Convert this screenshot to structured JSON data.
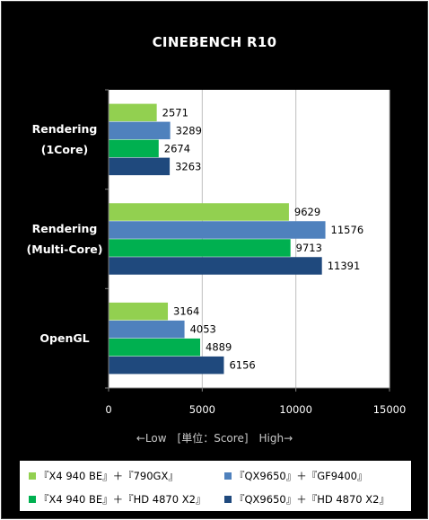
{
  "chart_data": {
    "type": "bar",
    "orientation": "horizontal",
    "title": "CINEBENCH R10",
    "categories": [
      "Rendering\n(1Core)",
      "Rendering\n(Multi-Core)",
      "OpenGL"
    ],
    "series": [
      {
        "name": "『X4 940 BE』＋『790GX』",
        "color": "#92d050",
        "values": [
          2571,
          9629,
          3164
        ]
      },
      {
        "name": "『QX9650』＋『GF9400』",
        "color": "#4f81bd",
        "values": [
          3289,
          11576,
          4053
        ]
      },
      {
        "name": "『X4 940 BE』＋『HD 4870 X2』",
        "color": "#00b050",
        "values": [
          2674,
          9713,
          4889
        ]
      },
      {
        "name": "『QX9650』＋『HD 4870 X2』",
        "color": "#1f497d",
        "values": [
          3263,
          11391,
          6156
        ]
      }
    ],
    "xlim": [
      0,
      15000
    ],
    "xticks": [
      0,
      5000,
      10000,
      15000
    ],
    "xlabel": "←Low　[単位：Score]　High→",
    "grid": true,
    "legend_position": "bottom"
  }
}
